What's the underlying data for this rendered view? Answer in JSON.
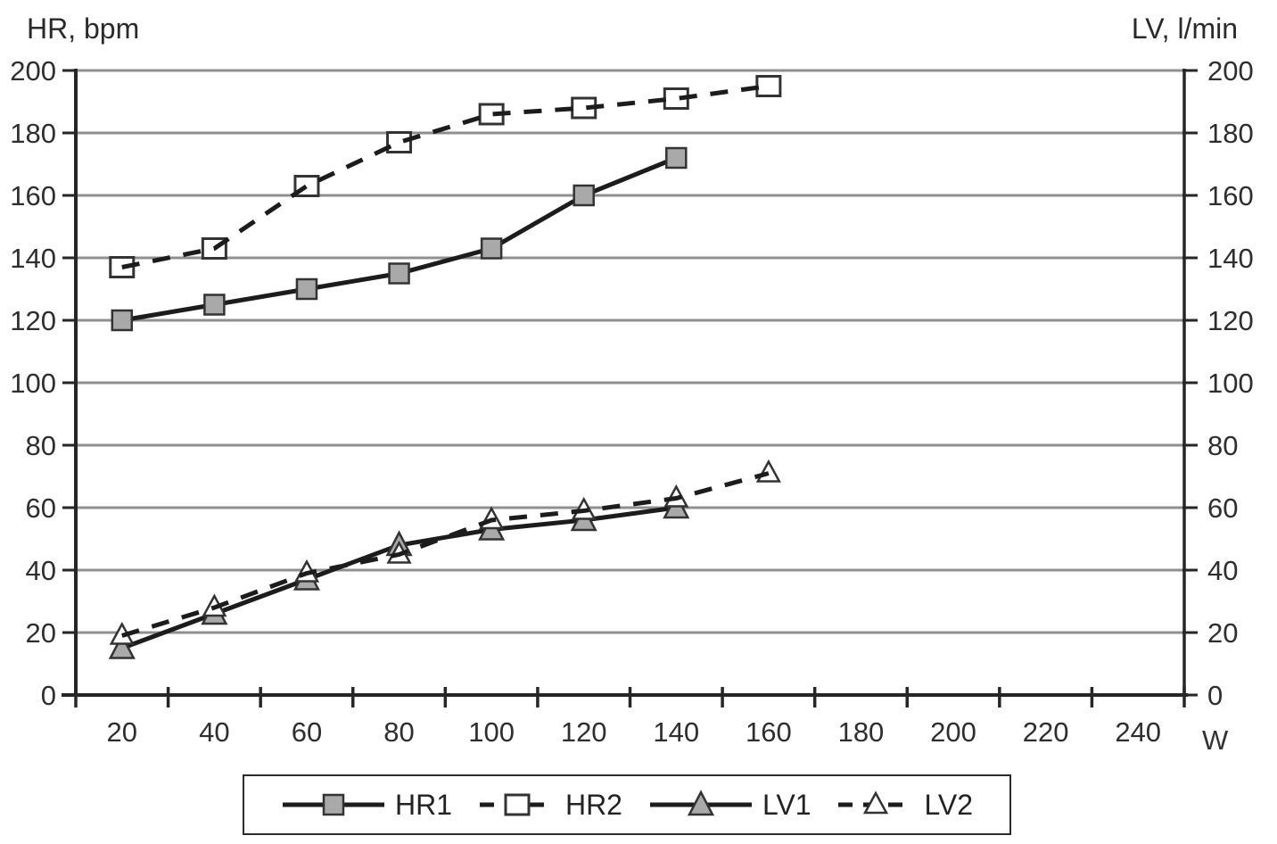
{
  "chart_data": {
    "type": "line",
    "title": "",
    "x_axis": {
      "title": "W",
      "labels": [
        "20",
        "40",
        "60",
        "80",
        "100",
        "120",
        "140",
        "160",
        "180",
        "200",
        "220",
        "240"
      ]
    },
    "left_axis": {
      "title": "HR, bpm",
      "min": 0,
      "max": 200,
      "step": 20,
      "tick_labels": [
        "0",
        "20",
        "40",
        "60",
        "80",
        "100",
        "120",
        "140",
        "160",
        "180",
        "200"
      ]
    },
    "right_axis": {
      "title": "LV, l/min",
      "min": 0,
      "max": 200,
      "step": 20,
      "tick_labels": [
        "0",
        "20",
        "40",
        "60",
        "80",
        "100",
        "120",
        "140",
        "160",
        "180",
        "200"
      ]
    },
    "grid": "horizontal",
    "legend_position": "bottom",
    "series": [
      {
        "name": "HR1",
        "axis": "left",
        "line": "solid",
        "marker": "filled-square",
        "x": [
          20,
          40,
          60,
          80,
          100,
          120,
          140
        ],
        "values": [
          120,
          125,
          130,
          135,
          143,
          160,
          172
        ]
      },
      {
        "name": "HR2",
        "axis": "left",
        "line": "dashed",
        "marker": "open-square",
        "x": [
          20,
          40,
          60,
          80,
          100,
          120,
          140,
          160
        ],
        "values": [
          137,
          143,
          163,
          177,
          186,
          188,
          191,
          195
        ]
      },
      {
        "name": "LV1",
        "axis": "right",
        "line": "solid",
        "marker": "filled-triangle",
        "x": [
          20,
          40,
          60,
          80,
          100,
          120,
          140
        ],
        "values": [
          15,
          26,
          37,
          48,
          53,
          56,
          60
        ]
      },
      {
        "name": "LV2",
        "axis": "right",
        "line": "dashed",
        "marker": "open-triangle",
        "x": [
          20,
          40,
          60,
          80,
          100,
          120,
          140,
          160
        ],
        "values": [
          19,
          28,
          39,
          45,
          56,
          59,
          63,
          71
        ]
      }
    ],
    "colors": {
      "background": "#ffffff",
      "line": "#1c1c1c",
      "grid": "#8f8f8f",
      "axis": "#262626",
      "marker_fill": "#a9a9a9",
      "marker_open_fill": "#ffffff",
      "marker_stroke": "#333333",
      "text": "#2e2e2e"
    }
  }
}
